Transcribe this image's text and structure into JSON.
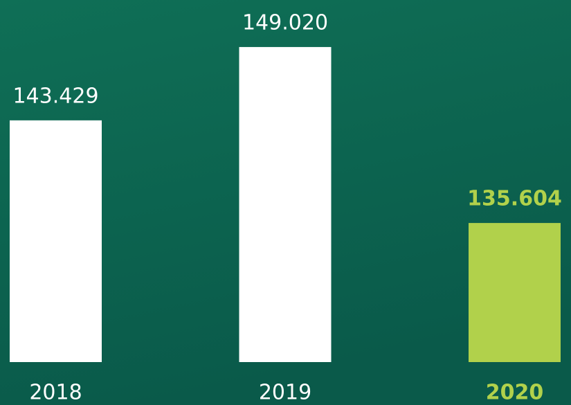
{
  "chart_data": {
    "type": "bar",
    "categories": [
      "2018",
      "2019",
      "2020"
    ],
    "values": [
      143429,
      149020,
      135604
    ],
    "value_labels": [
      "143.429",
      "149.020",
      "135.604"
    ],
    "colors": [
      "#ffffff",
      "#ffffff",
      "#b1d14b"
    ],
    "highlight": 2,
    "ylim": [
      125000,
      152500
    ]
  }
}
